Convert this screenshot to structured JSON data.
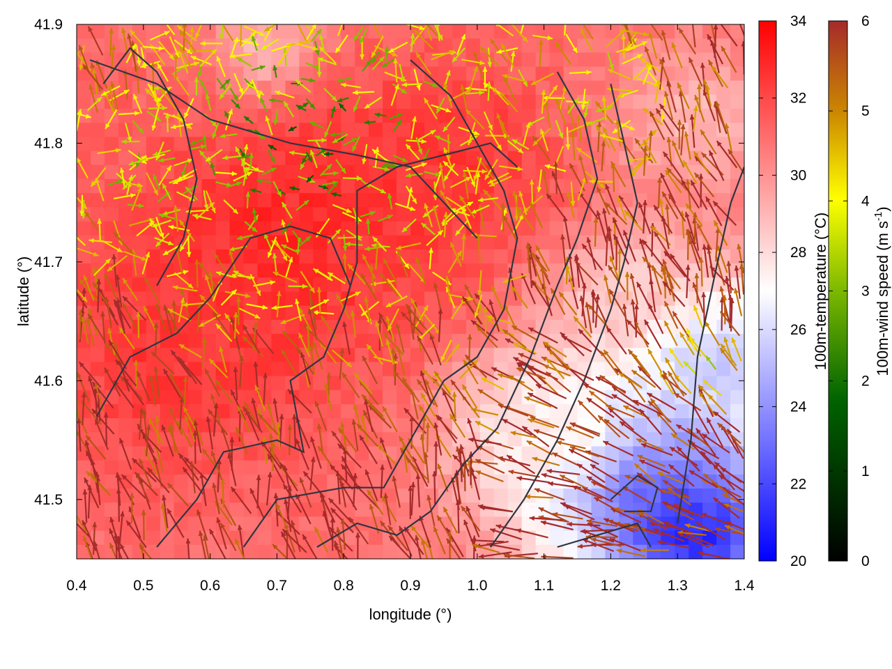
{
  "chart_data": {
    "type": "heatmap",
    "xlabel": "longitude (°)",
    "ylabel": "latitude (°)",
    "xlim": [
      0.4,
      1.4
    ],
    "ylim": [
      41.45,
      41.9
    ],
    "xticks": [
      "0.4",
      "0.5",
      "0.6",
      "0.7",
      "0.8",
      "0.9",
      "1.0",
      "1.1",
      "1.2",
      "1.3",
      "1.4"
    ],
    "yticks": [
      "41.5",
      "41.6",
      "41.7",
      "41.8",
      "41.9"
    ],
    "temperature_colorbar": {
      "label": "100m-temperature (°C)",
      "range": [
        20,
        34
      ],
      "ticks": [
        "20",
        "22",
        "24",
        "26",
        "28",
        "30",
        "32",
        "34"
      ],
      "colors": [
        "#0000ff",
        "#ffffff",
        "#ff0000"
      ]
    },
    "wind_colorbar": {
      "label_main": "100m-wind speed (m s",
      "label_sup": "-1",
      "label_end": ")",
      "range": [
        0,
        6
      ],
      "ticks": [
        "0",
        "1",
        "2",
        "3",
        "4",
        "5",
        "6"
      ],
      "colors": [
        "#000000",
        "#006400",
        "#7cb800",
        "#ffff00",
        "#cc8800",
        "#a52a2a"
      ]
    },
    "temperature_field": {
      "background_c": 31,
      "features": [
        {
          "lon": 0.72,
          "lat": 41.72,
          "temp_c": 33,
          "spread_deg": 0.18
        },
        {
          "lon": 0.55,
          "lat": 41.62,
          "temp_c": 32.5,
          "spread_deg": 0.15
        },
        {
          "lon": 0.95,
          "lat": 41.78,
          "temp_c": 32.5,
          "spread_deg": 0.14
        },
        {
          "lon": 1.26,
          "lat": 41.52,
          "temp_c": 22,
          "spread_deg": 0.14
        },
        {
          "lon": 1.33,
          "lat": 41.47,
          "temp_c": 21,
          "spread_deg": 0.08
        },
        {
          "lon": 1.36,
          "lat": 41.62,
          "temp_c": 25.5,
          "spread_deg": 0.12
        },
        {
          "lon": 1.1,
          "lat": 41.56,
          "temp_c": 27.5,
          "spread_deg": 0.1
        },
        {
          "lon": 1.33,
          "lat": 41.82,
          "temp_c": 29,
          "spread_deg": 0.1
        },
        {
          "lon": 0.68,
          "lat": 41.88,
          "temp_c": 29,
          "spread_deg": 0.06
        },
        {
          "lon": 1.22,
          "lat": 41.68,
          "temp_c": 28.5,
          "spread_deg": 0.08
        }
      ]
    },
    "wind_regions": [
      {
        "lon": 0.75,
        "lat": 41.8,
        "speed_ms": 2,
        "spread_deg": 0.22
      },
      {
        "lon": 0.45,
        "lat": 41.78,
        "speed_ms": 3,
        "spread_deg": 0.08
      },
      {
        "lon": 1.15,
        "lat": 41.85,
        "speed_ms": 3.5,
        "spread_deg": 0.1
      },
      {
        "lon": 1.35,
        "lat": 41.62,
        "speed_ms": 3.5,
        "spread_deg": 0.05
      },
      {
        "lon": 0.95,
        "lat": 41.62,
        "speed_ms": 5,
        "spread_deg": 0.08
      }
    ],
    "contour_lines": [
      {
        "name": "contour-1",
        "points": [
          [
            0.42,
            41.87
          ],
          [
            0.52,
            41.85
          ],
          [
            0.6,
            41.82
          ],
          [
            0.72,
            41.8
          ],
          [
            0.82,
            41.79
          ],
          [
            0.9,
            41.78
          ],
          [
            0.95,
            41.75
          ],
          [
            1.0,
            41.72
          ]
        ]
      },
      {
        "name": "contour-2",
        "points": [
          [
            0.43,
            41.57
          ],
          [
            0.48,
            41.62
          ],
          [
            0.55,
            41.64
          ],
          [
            0.6,
            41.67
          ],
          [
            0.66,
            41.72
          ],
          [
            0.72,
            41.73
          ],
          [
            0.78,
            41.72
          ],
          [
            0.81,
            41.68
          ]
        ]
      },
      {
        "name": "contour-3",
        "points": [
          [
            0.52,
            41.46
          ],
          [
            0.58,
            41.5
          ],
          [
            0.62,
            41.54
          ],
          [
            0.7,
            41.55
          ],
          [
            0.74,
            41.54
          ],
          [
            0.72,
            41.6
          ],
          [
            0.77,
            41.62
          ],
          [
            0.8,
            41.66
          ],
          [
            0.82,
            41.7
          ],
          [
            0.82,
            41.76
          ],
          [
            0.88,
            41.78
          ],
          [
            0.95,
            41.79
          ],
          [
            1.02,
            41.8
          ],
          [
            1.06,
            41.78
          ]
        ]
      },
      {
        "name": "contour-4",
        "points": [
          [
            0.65,
            41.46
          ],
          [
            0.7,
            41.5
          ],
          [
            0.8,
            41.51
          ],
          [
            0.86,
            41.51
          ],
          [
            0.9,
            41.55
          ],
          [
            0.95,
            41.6
          ],
          [
            1.0,
            41.62
          ],
          [
            1.04,
            41.66
          ],
          [
            1.06,
            41.72
          ],
          [
            1.04,
            41.76
          ],
          [
            1.0,
            41.8
          ],
          [
            0.96,
            41.84
          ],
          [
            0.9,
            41.87
          ]
        ]
      },
      {
        "name": "contour-5",
        "points": [
          [
            0.76,
            41.46
          ],
          [
            0.82,
            41.48
          ],
          [
            0.88,
            41.47
          ],
          [
            0.93,
            41.49
          ],
          [
            0.98,
            41.53
          ],
          [
            1.03,
            41.56
          ],
          [
            1.08,
            41.62
          ],
          [
            1.12,
            41.68
          ],
          [
            1.15,
            41.72
          ],
          [
            1.18,
            41.77
          ],
          [
            1.16,
            41.82
          ],
          [
            1.12,
            41.86
          ]
        ]
      },
      {
        "name": "contour-6",
        "points": [
          [
            1.02,
            41.46
          ],
          [
            1.07,
            41.5
          ],
          [
            1.12,
            41.55
          ],
          [
            1.16,
            41.6
          ],
          [
            1.2,
            41.66
          ],
          [
            1.22,
            41.7
          ],
          [
            1.24,
            41.75
          ],
          [
            1.22,
            41.8
          ],
          [
            1.2,
            41.85
          ]
        ]
      },
      {
        "name": "contour-7",
        "points": [
          [
            1.12,
            41.46
          ],
          [
            1.18,
            41.47
          ],
          [
            1.24,
            41.48
          ],
          [
            1.26,
            41.46
          ]
        ]
      },
      {
        "name": "contour-8",
        "points": [
          [
            1.2,
            41.5
          ],
          [
            1.24,
            41.52
          ],
          [
            1.27,
            41.51
          ],
          [
            1.26,
            41.49
          ],
          [
            1.22,
            41.49
          ]
        ]
      },
      {
        "name": "contour-9",
        "points": [
          [
            1.3,
            41.48
          ],
          [
            1.32,
            41.55
          ],
          [
            1.33,
            41.62
          ],
          [
            1.36,
            41.7
          ],
          [
            1.38,
            41.75
          ],
          [
            1.4,
            41.78
          ]
        ]
      },
      {
        "name": "contour-10",
        "points": [
          [
            0.52,
            41.68
          ],
          [
            0.56,
            41.72
          ],
          [
            0.58,
            41.77
          ],
          [
            0.56,
            41.82
          ],
          [
            0.52,
            41.86
          ],
          [
            0.48,
            41.88
          ],
          [
            0.44,
            41.85
          ]
        ]
      }
    ]
  }
}
